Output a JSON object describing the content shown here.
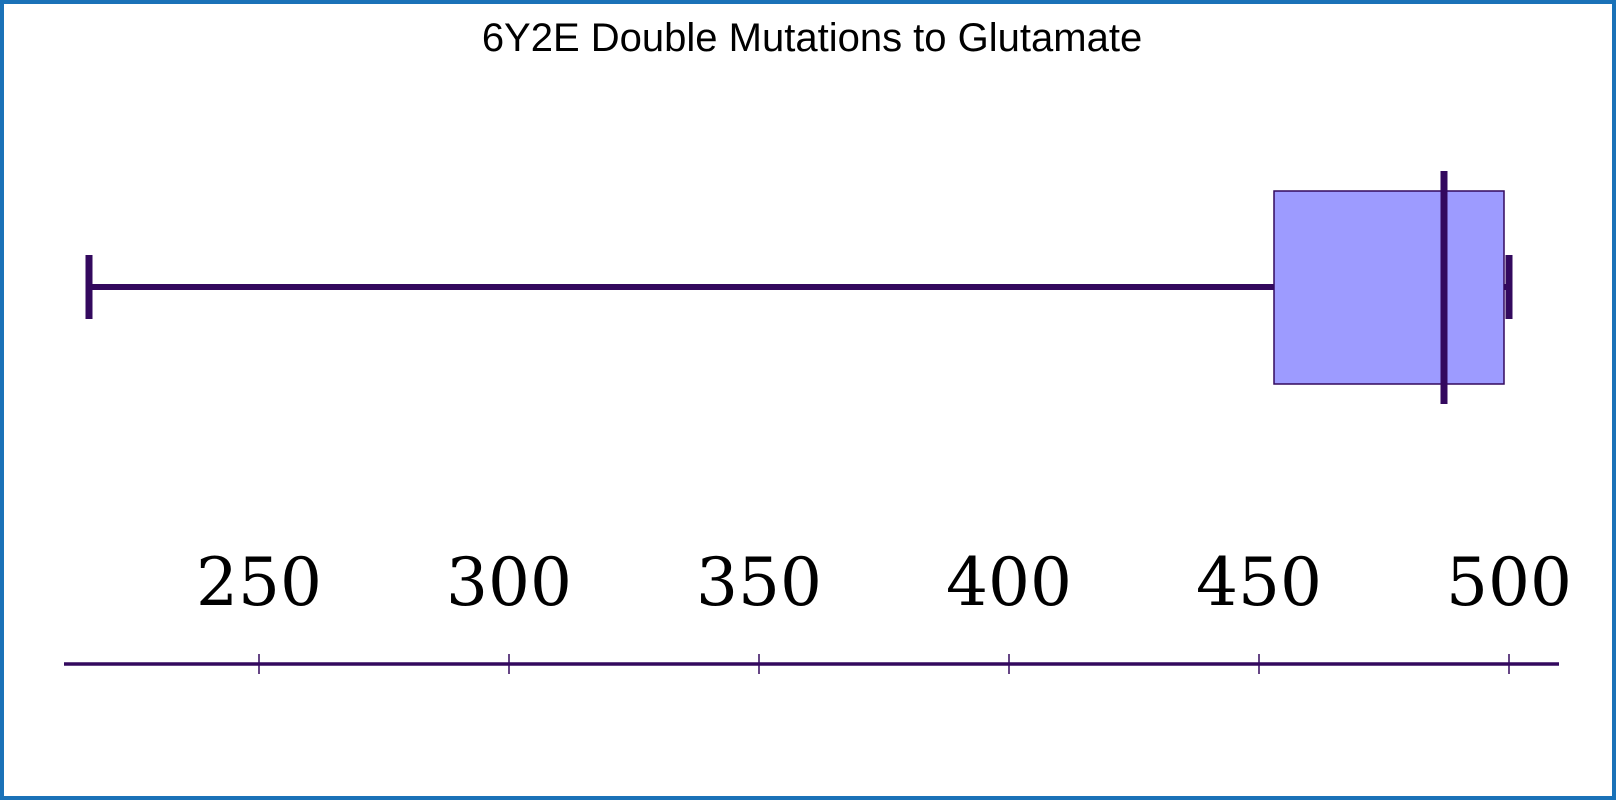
{
  "chart_data": {
    "type": "box",
    "title": "6Y2E Double Mutations to Glutamate",
    "xlabel": "",
    "ylabel": "",
    "xlim": [
      210,
      510
    ],
    "ticks": [
      250,
      300,
      350,
      400,
      450,
      500
    ],
    "tick_labels": [
      "250",
      "300",
      "350",
      "400",
      "450",
      "500"
    ],
    "box": {
      "min": 216,
      "q1": 453,
      "median": 487,
      "q3": 499,
      "max": 500
    },
    "colors": {
      "box_fill": "#9d9bff",
      "line": "#33095e",
      "frame": "#1a72b8"
    }
  }
}
